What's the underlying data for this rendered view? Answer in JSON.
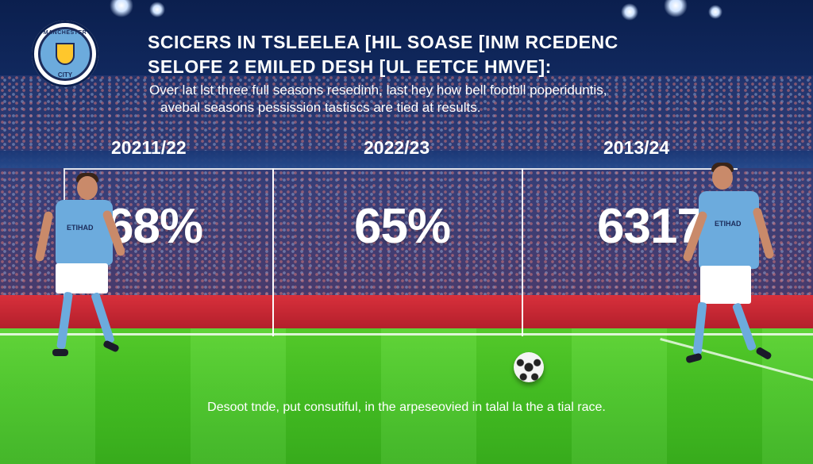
{
  "crest": {
    "top_text": "MANCHESTER",
    "bottom_text": "CITY"
  },
  "headline": {
    "line1": "SCICERS IN TSLEELEA [HIL SOASE [INM RCEDENC",
    "line2": "SELOFE 2 EMILED DESH [UL EETCE HMVE]:"
  },
  "subtitle": {
    "line1": "Over lat lst three full seasons resedinh, last hey how bell footbll poperiduntis,",
    "line2": "avebal seasons pessission tastiscs are tied at results."
  },
  "seasons": [
    {
      "label": "20211/22",
      "value": "68%"
    },
    {
      "label": "2022/23",
      "value": "65%"
    },
    {
      "label": "2013/24",
      "value": "6317%"
    }
  ],
  "players": {
    "left_sponsor": "ETIHAD",
    "right_sponsor": "ETIHAD"
  },
  "footer": {
    "text": "Desoot tnde, put consutiful, in the arpeseovied in talal la the a tial race."
  },
  "colors": {
    "sky_blue": "#6cabdd",
    "navy": "#1c2c5b",
    "adboard_red": "#d8303b",
    "pitch_green": "#46c323"
  }
}
